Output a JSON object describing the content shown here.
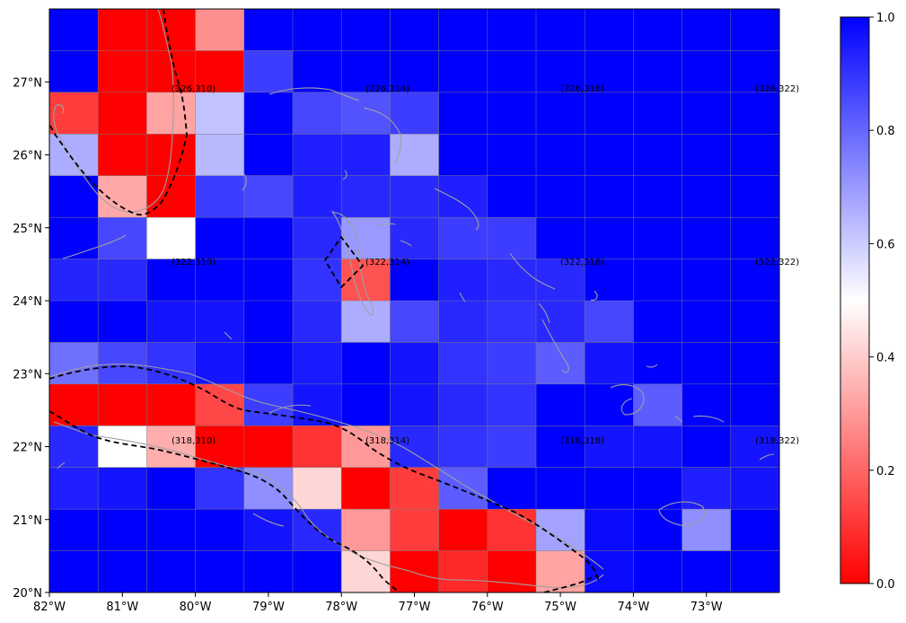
{
  "map": {
    "lon_range": [
      -82,
      -72
    ],
    "lat_range": [
      20,
      28
    ],
    "x_tick_labels": [
      "82°W",
      "81°W",
      "80°W",
      "79°W",
      "78°W",
      "77°W",
      "76°W",
      "75°W",
      "74°W",
      "73°W"
    ],
    "y_tick_labels": [
      "20°N",
      "21°N",
      "22°N",
      "23°N",
      "24°N",
      "25°N",
      "26°N",
      "27°N"
    ],
    "grid": true,
    "colormap": "bwr_r (red = 0, white = 0.5, blue = 1)",
    "colorbar": {
      "range": [
        0,
        1
      ],
      "tick_labels": [
        "0.0",
        "0.2",
        "0.4",
        "0.6",
        "0.8",
        "1.0"
      ]
    },
    "cell_labels": [
      "(326,310)",
      "(326,314)",
      "(326,318)",
      "(326,322)",
      "(322,310)",
      "(322,314)",
      "(322,318)",
      "(322,322)",
      "(318,310)",
      "(318,314)",
      "(318,318)",
      "(318,322)"
    ],
    "cell_values": [
      [
        1.0,
        0.0,
        0.0,
        0.28,
        1.0,
        1.0,
        1.0,
        1.0,
        1.0,
        1.0,
        1.0,
        1.0,
        1.0,
        1.0,
        1.0
      ],
      [
        1.0,
        0.0,
        0.0,
        0.0,
        0.88,
        1.0,
        1.0,
        1.0,
        1.0,
        1.0,
        1.0,
        1.0,
        1.0,
        1.0,
        1.0
      ],
      [
        0.12,
        0.0,
        0.32,
        0.62,
        1.0,
        0.86,
        0.84,
        0.88,
        1.0,
        1.0,
        1.0,
        1.0,
        1.0,
        1.0,
        1.0
      ],
      [
        0.66,
        0.0,
        0.0,
        0.64,
        1.0,
        0.94,
        0.94,
        0.66,
        1.0,
        1.0,
        1.0,
        1.0,
        1.0,
        1.0,
        1.0
      ],
      [
        1.0,
        0.33,
        0.0,
        0.88,
        0.86,
        0.94,
        0.92,
        0.92,
        0.94,
        1.0,
        1.0,
        1.0,
        1.0,
        1.0,
        1.0
      ],
      [
        1.0,
        0.86,
        0.5,
        1.0,
        1.0,
        0.92,
        0.7,
        0.92,
        0.88,
        0.88,
        1.0,
        1.0,
        1.0,
        1.0,
        1.0
      ],
      [
        0.93,
        0.92,
        1.0,
        1.0,
        1.0,
        0.9,
        0.16,
        1.0,
        0.94,
        0.92,
        0.92,
        1.0,
        1.0,
        1.0,
        1.0
      ],
      [
        1.0,
        1.0,
        0.96,
        0.96,
        1.0,
        0.92,
        0.66,
        0.86,
        0.92,
        0.9,
        0.92,
        0.86,
        1.0,
        1.0,
        1.0
      ],
      [
        0.78,
        0.86,
        0.9,
        0.96,
        1.0,
        0.95,
        1.0,
        0.96,
        0.9,
        0.88,
        0.82,
        0.96,
        1.0,
        1.0,
        1.0
      ],
      [
        0.0,
        0.0,
        0.0,
        0.14,
        0.88,
        0.96,
        1.0,
        0.96,
        0.92,
        0.9,
        1.0,
        1.0,
        0.82,
        1.0,
        1.0
      ],
      [
        0.92,
        0.5,
        0.34,
        0.0,
        0.0,
        0.1,
        0.3,
        0.92,
        0.9,
        0.88,
        1.0,
        0.96,
        0.96,
        1.0,
        0.96
      ],
      [
        0.94,
        0.96,
        1.0,
        0.9,
        0.72,
        0.42,
        0.0,
        0.12,
        0.82,
        1.0,
        1.0,
        1.0,
        1.0,
        0.94,
        0.96
      ],
      [
        1.0,
        1.0,
        1.0,
        1.0,
        0.96,
        0.92,
        0.3,
        0.12,
        0.0,
        0.1,
        0.68,
        0.98,
        1.0,
        0.72,
        1.0
      ],
      [
        1.0,
        1.0,
        1.0,
        1.0,
        1.0,
        1.0,
        0.42,
        0.0,
        0.08,
        0.0,
        0.32,
        0.98,
        1.0,
        1.0,
        1.0
      ]
    ]
  }
}
